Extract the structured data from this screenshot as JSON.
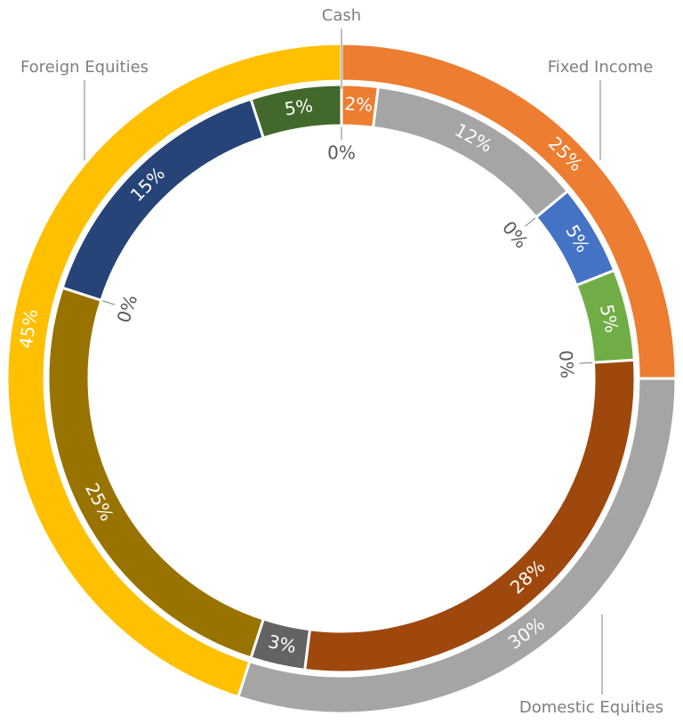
{
  "chart_data": {
    "type": "nested-donut",
    "outer": {
      "categories": [
        "Cash",
        "Fixed Income",
        "Domestic Equities",
        "Foreign Equities"
      ],
      "values": [
        0,
        25,
        30,
        45
      ],
      "value_labels": [
        "0%",
        "25%",
        "30%",
        "45%"
      ],
      "colors": [
        "#7f7f7f",
        "#ed7d31",
        "#a5a5a5",
        "#ffc000"
      ]
    },
    "inner": {
      "values": [
        0,
        2,
        12,
        0,
        5,
        5,
        0,
        28,
        3,
        25,
        0,
        15,
        5
      ],
      "value_labels": [
        "0%",
        "2%",
        "12%",
        "0%",
        "5%",
        "5%",
        "0%",
        "28%",
        "3%",
        "25%",
        "0%",
        "15%",
        "5%"
      ],
      "colors": [
        "#7f7f7f",
        "#ed7d31",
        "#a5a5a5",
        "#7f7f7f",
        "#4472c4",
        "#70ad47",
        "#7f7f7f",
        "#9e480e",
        "#636363",
        "#997300",
        "#7f7f7f",
        "#264478",
        "#43682b"
      ]
    }
  }
}
